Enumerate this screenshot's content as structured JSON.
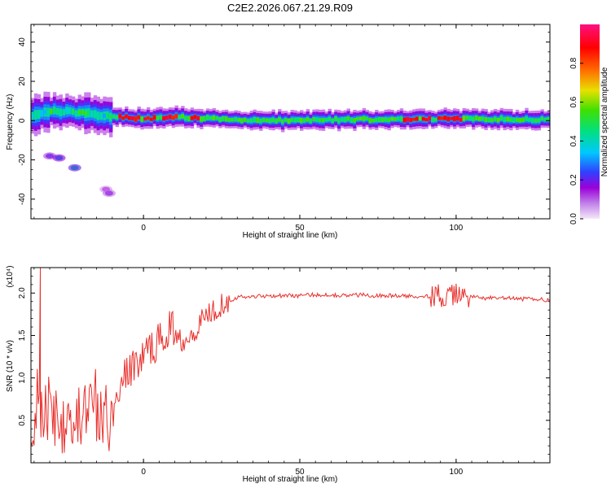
{
  "title": "C2E2.2026.067.21.29.R09",
  "colors": {
    "snr_line": "#e8302c",
    "axis": "#000000",
    "background": "#ffffff"
  },
  "chart_data": [
    {
      "type": "heatmap",
      "title": "C2E2.2026.067.21.29.R09",
      "xlabel": "Height of straight line (km)",
      "ylabel": "Frequency (Hz)",
      "xlim": [
        -36,
        130
      ],
      "ylim": [
        -50,
        49
      ],
      "x_ticks": [
        0,
        50,
        100
      ],
      "y_ticks": [
        -40,
        -20,
        0,
        20,
        40
      ],
      "colorbar": {
        "label": "Normalized spectral amplitude",
        "range": [
          0.0,
          1.0
        ],
        "ticks": [
          "0.0",
          "0.2",
          "0.4",
          "0.6",
          "0.8"
        ],
        "colormap": [
          "#f4e8f8",
          "#9a00d8",
          "#3040ff",
          "#00c8ff",
          "#00e080",
          "#40e000",
          "#e8e000",
          "#ff7000",
          "#ff0000",
          "#ff1080"
        ]
      },
      "main_band": {
        "start_height_km": -36,
        "end_height_km": 130,
        "center_frequency_hz": [
          [
            -36,
            3
          ],
          [
            -30,
            5
          ],
          [
            -20,
            4
          ],
          [
            -10,
            2
          ],
          [
            0,
            1
          ],
          [
            10,
            2
          ],
          [
            20,
            1
          ],
          [
            40,
            0
          ],
          [
            60,
            0.5
          ],
          [
            80,
            0.5
          ],
          [
            100,
            1
          ],
          [
            130,
            0.5
          ]
        ],
        "peak_amplitude_segments_km": [
          [
            -8,
            -2
          ],
          [
            0,
            3
          ],
          [
            6,
            10
          ],
          [
            15,
            17
          ],
          [
            83,
            87
          ],
          [
            89,
            91
          ],
          [
            94,
            101
          ]
        ]
      },
      "isolated_patches": [
        {
          "height_km": -30,
          "frequency_hz": -18,
          "amplitude": 0.2
        },
        {
          "height_km": -27,
          "frequency_hz": -19,
          "amplitude": 0.3
        },
        {
          "height_km": -22,
          "frequency_hz": -24,
          "amplitude": 0.4
        },
        {
          "height_km": -12,
          "frequency_hz": -35,
          "amplitude": 0.1
        },
        {
          "height_km": -11,
          "frequency_hz": -37,
          "amplitude": 0.15
        }
      ]
    },
    {
      "type": "line",
      "xlabel": "Height of straight line (km)",
      "ylabel": "SNR (10 * v/v)",
      "y_multiplier": "(x10⁴)",
      "xlim": [
        -36,
        130
      ],
      "ylim": [
        0,
        2.3
      ],
      "x_ticks": [
        0,
        50,
        100
      ],
      "y_ticks": [
        0.5,
        1.0,
        1.5,
        2.0
      ],
      "series": [
        {
          "x": [
            -36,
            -34,
            -32,
            -30,
            -28,
            -26,
            -24,
            -22,
            -20,
            -18,
            -16,
            -14,
            -12,
            -10,
            -8,
            -6,
            -4,
            -2,
            0,
            2,
            4,
            6,
            8,
            10,
            12,
            14,
            16,
            18,
            20,
            22,
            24,
            26,
            28,
            30,
            35,
            40,
            45,
            50,
            55,
            60,
            65,
            70,
            75,
            80,
            85,
            90,
            93,
            95,
            97,
            99,
            101,
            103,
            105,
            110,
            115,
            120,
            125,
            130
          ],
          "y": [
            0.3,
            0.8,
            0.5,
            0.7,
            0.6,
            0.5,
            0.7,
            0.4,
            0.6,
            0.5,
            0.8,
            0.4,
            0.6,
            0.5,
            0.9,
            1.0,
            1.1,
            1.2,
            1.25,
            1.35,
            1.4,
            1.45,
            1.6,
            1.55,
            1.45,
            1.5,
            1.55,
            1.65,
            1.75,
            1.8,
            1.85,
            1.9,
            1.92,
            1.95,
            1.96,
            1.97,
            1.97,
            1.97,
            1.98,
            1.98,
            1.97,
            1.98,
            1.97,
            1.97,
            1.96,
            1.97,
            1.95,
            1.98,
            1.9,
            1.97,
            1.99,
            1.96,
            1.95,
            1.94,
            1.94,
            1.93,
            1.93,
            1.92
          ]
        }
      ],
      "notes": "Very noisy at low heights (spikes up to ~2.3), settling near 1.95–2.0 above ~30 km with an oscillatory burst around 93–102 km."
    }
  ]
}
